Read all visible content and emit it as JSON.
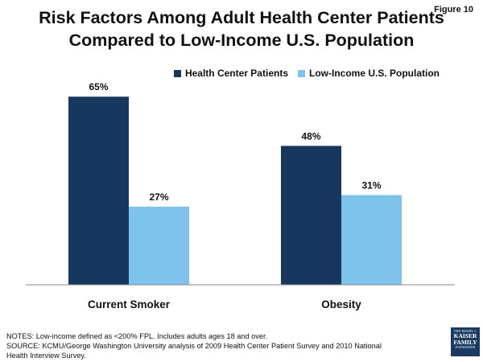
{
  "figure_label": "Figure 10",
  "title_line1": "Risk Factors Among Adult Health Center Patients",
  "title_line2": "Compared to Low-Income U.S. Population",
  "chart_data": {
    "type": "bar",
    "categories": [
      "Current Smoker",
      "Obesity"
    ],
    "series": [
      {
        "name": "Health Center Patients",
        "values": [
          65,
          48
        ],
        "labels": [
          "65%",
          "48%"
        ],
        "color": "#17375e"
      },
      {
        "name": "Low-Income U.S. Population",
        "values": [
          27,
          31
        ],
        "labels": [
          "27%",
          "31%"
        ],
        "color": "#7ec3ec"
      }
    ],
    "ylim": [
      0,
      72
    ],
    "title": "Risk Factors Among Adult Health Center Patients Compared to Low-Income U.S. Population",
    "xlabel": "",
    "ylabel": "",
    "legend": "top-right",
    "grid": false
  },
  "notes": {
    "line1": "NOTES: Low-income defined as <200% FPL. Includes adults ages 18 and over.",
    "line2": "SOURCE: KCMU/George Washington University analysis of 2009 Health Center Patient Survey and 2010 National",
    "line3": "Health Interview Survey."
  },
  "logo": {
    "line1": "THE HENRY J.",
    "line2": "KAISER",
    "line3": "FAMILY",
    "line4": "FOUNDATION"
  }
}
